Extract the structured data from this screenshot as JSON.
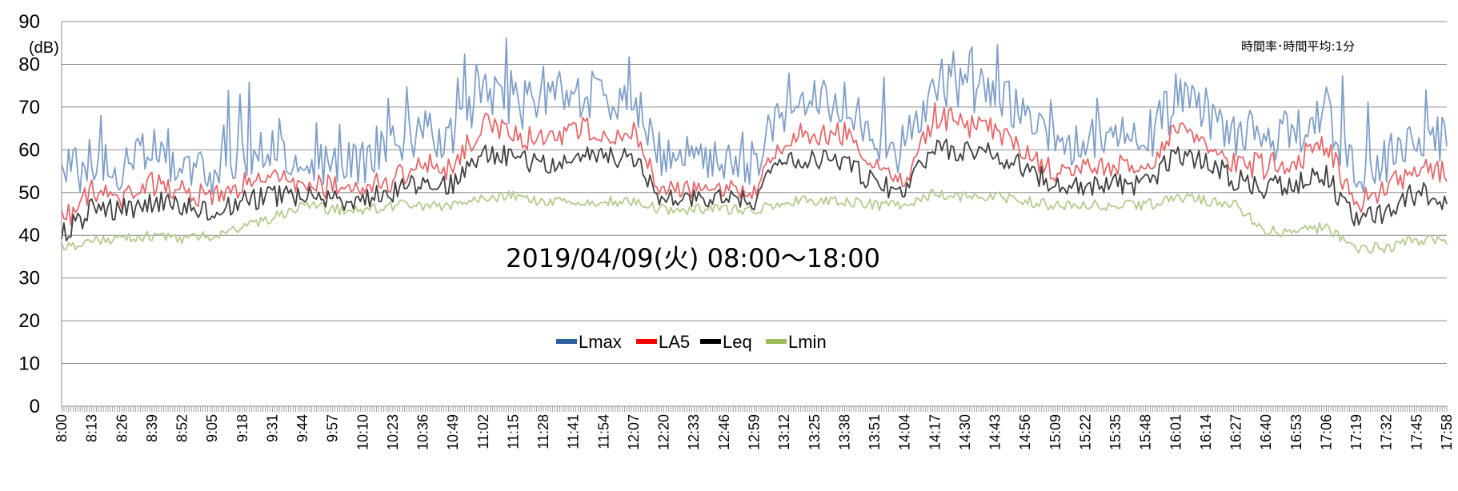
{
  "chart_data": {
    "type": "line",
    "title": "2019/04/09(火) 08:00～18:00",
    "annotation": "時間率･時間平均:1分",
    "ylabel": "(dB)",
    "ylim": [
      0,
      90
    ],
    "yticks": [
      0,
      10,
      20,
      30,
      40,
      50,
      60,
      70,
      80,
      90
    ],
    "x_start": "8:00",
    "x_end": "17:58",
    "x_interval_minutes": 1,
    "xtick_labels": [
      "8:00",
      "8:13",
      "8:26",
      "8:39",
      "8:52",
      "9:05",
      "9:18",
      "9:31",
      "9:44",
      "9:57",
      "10:10",
      "10:23",
      "10:36",
      "10:49",
      "11:02",
      "11:15",
      "11:28",
      "11:41",
      "11:54",
      "12:07",
      "12:20",
      "12:33",
      "12:46",
      "12:59",
      "13:12",
      "13:25",
      "13:38",
      "13:51",
      "14:04",
      "14:17",
      "14:30",
      "14:43",
      "14:56",
      "15:09",
      "15:22",
      "15:35",
      "15:48",
      "16:01",
      "16:14",
      "16:27",
      "16:40",
      "16:53",
      "17:06",
      "17:19",
      "17:32",
      "17:45",
      "17:58"
    ],
    "grid": true,
    "legend_position": "bottom-center",
    "series_base": [
      {
        "time": "8:00",
        "Lmax": 52,
        "LA5": 43,
        "Leq": 40,
        "Lmin": 37
      },
      {
        "time": "8:13",
        "Lmax": 58,
        "LA5": 50,
        "Leq": 46,
        "Lmin": 39
      },
      {
        "time": "8:26",
        "Lmax": 55,
        "LA5": 48,
        "Leq": 46,
        "Lmin": 39
      },
      {
        "time": "8:39",
        "Lmax": 59,
        "LA5": 52,
        "Leq": 48,
        "Lmin": 40
      },
      {
        "time": "8:52",
        "Lmax": 57,
        "LA5": 50,
        "Leq": 47,
        "Lmin": 39
      },
      {
        "time": "9:05",
        "Lmax": 55,
        "LA5": 49,
        "Leq": 46,
        "Lmin": 40
      },
      {
        "time": "9:18",
        "Lmax": 60,
        "LA5": 52,
        "Leq": 48,
        "Lmin": 42
      },
      {
        "time": "9:31",
        "Lmax": 59,
        "LA5": 53,
        "Leq": 49,
        "Lmin": 44
      },
      {
        "time": "9:44",
        "Lmax": 57,
        "LA5": 52,
        "Leq": 49,
        "Lmin": 47
      },
      {
        "time": "9:57",
        "Lmax": 56,
        "LA5": 51,
        "Leq": 48,
        "Lmin": 46
      },
      {
        "time": "10:10",
        "Lmax": 58,
        "LA5": 51,
        "Leq": 48,
        "Lmin": 46
      },
      {
        "time": "10:23",
        "Lmax": 62,
        "LA5": 53,
        "Leq": 50,
        "Lmin": 47
      },
      {
        "time": "10:36",
        "Lmax": 64,
        "LA5": 56,
        "Leq": 52,
        "Lmin": 47
      },
      {
        "time": "10:49",
        "Lmax": 63,
        "LA5": 56,
        "Leq": 52,
        "Lmin": 47
      },
      {
        "time": "11:02",
        "Lmax": 73,
        "LA5": 66,
        "Leq": 60,
        "Lmin": 49
      },
      {
        "time": "11:15",
        "Lmax": 71,
        "LA5": 63,
        "Leq": 58,
        "Lmin": 49
      },
      {
        "time": "11:28",
        "Lmax": 70,
        "LA5": 62,
        "Leq": 57,
        "Lmin": 48
      },
      {
        "time": "11:41",
        "Lmax": 73,
        "LA5": 65,
        "Leq": 58,
        "Lmin": 48
      },
      {
        "time": "11:54",
        "Lmax": 72,
        "LA5": 64,
        "Leq": 58,
        "Lmin": 48
      },
      {
        "time": "12:07",
        "Lmax": 71,
        "LA5": 64,
        "Leq": 58,
        "Lmin": 48
      },
      {
        "time": "12:20",
        "Lmax": 58,
        "LA5": 50,
        "Leq": 48,
        "Lmin": 46
      },
      {
        "time": "12:33",
        "Lmax": 57,
        "LA5": 50,
        "Leq": 48,
        "Lmin": 46
      },
      {
        "time": "12:46",
        "Lmax": 56,
        "LA5": 49,
        "Leq": 48,
        "Lmin": 46
      },
      {
        "time": "12:59",
        "Lmax": 57,
        "LA5": 49,
        "Leq": 48,
        "Lmin": 46
      },
      {
        "time": "13:12",
        "Lmax": 70,
        "LA5": 63,
        "Leq": 58,
        "Lmin": 48
      },
      {
        "time": "13:25",
        "Lmax": 72,
        "LA5": 64,
        "Leq": 58,
        "Lmin": 48
      },
      {
        "time": "13:38",
        "Lmax": 71,
        "LA5": 64,
        "Leq": 58,
        "Lmin": 48
      },
      {
        "time": "13:51",
        "Lmax": 63,
        "LA5": 55,
        "Leq": 52,
        "Lmin": 47
      },
      {
        "time": "14:04",
        "Lmax": 60,
        "LA5": 52,
        "Leq": 50,
        "Lmin": 47
      },
      {
        "time": "14:17",
        "Lmax": 76,
        "LA5": 68,
        "Leq": 61,
        "Lmin": 50
      },
      {
        "time": "14:30",
        "Lmax": 75,
        "LA5": 66,
        "Leq": 60,
        "Lmin": 49
      },
      {
        "time": "14:43",
        "Lmax": 73,
        "LA5": 65,
        "Leq": 59,
        "Lmin": 49
      },
      {
        "time": "14:56",
        "Lmax": 68,
        "LA5": 60,
        "Leq": 56,
        "Lmin": 48
      },
      {
        "time": "15:09",
        "Lmax": 60,
        "LA5": 54,
        "Leq": 51,
        "Lmin": 47
      },
      {
        "time": "15:22",
        "Lmax": 61,
        "LA5": 55,
        "Leq": 52,
        "Lmin": 47
      },
      {
        "time": "15:35",
        "Lmax": 62,
        "LA5": 56,
        "Leq": 52,
        "Lmin": 47
      },
      {
        "time": "15:48",
        "Lmax": 61,
        "LA5": 55,
        "Leq": 52,
        "Lmin": 47
      },
      {
        "time": "16:01",
        "Lmax": 72,
        "LA5": 64,
        "Leq": 59,
        "Lmin": 49
      },
      {
        "time": "16:14",
        "Lmax": 68,
        "LA5": 61,
        "Leq": 57,
        "Lmin": 48
      },
      {
        "time": "16:27",
        "Lmax": 64,
        "LA5": 57,
        "Leq": 53,
        "Lmin": 47
      },
      {
        "time": "16:40",
        "Lmax": 63,
        "LA5": 56,
        "Leq": 51,
        "Lmin": 41
      },
      {
        "time": "16:53",
        "Lmax": 65,
        "LA5": 58,
        "Leq": 52,
        "Lmin": 41
      },
      {
        "time": "17:06",
        "Lmax": 68,
        "LA5": 61,
        "Leq": 54,
        "Lmin": 42
      },
      {
        "time": "17:19",
        "Lmax": 53,
        "LA5": 47,
        "Leq": 43,
        "Lmin": 37
      },
      {
        "time": "17:32",
        "Lmax": 58,
        "LA5": 51,
        "Leq": 46,
        "Lmin": 37
      },
      {
        "time": "17:45",
        "Lmax": 64,
        "LA5": 56,
        "Leq": 50,
        "Lmin": 39
      },
      {
        "time": "17:58",
        "Lmax": 62,
        "LA5": 54,
        "Leq": 48,
        "Lmin": 39
      }
    ],
    "peaks": [
      {
        "time": "8:17",
        "Lmax": 68
      },
      {
        "time": "9:17",
        "Lmax": 73
      },
      {
        "time": "10:21",
        "Lmax": 72
      },
      {
        "time": "12:03",
        "Lmax": 75
      },
      {
        "time": "14:25",
        "Lmax": 83
      },
      {
        "time": "14:33",
        "Lmax": 84
      },
      {
        "time": "15:27",
        "Lmax": 72
      },
      {
        "time": "17:49",
        "Lmax": 74
      }
    ],
    "series": [
      {
        "name": "Lmax",
        "color": "#7f9fc9",
        "legend_color": "#2e5f9e"
      },
      {
        "name": "LA5",
        "color": "#e8676a",
        "legend_color": "#ff0000"
      },
      {
        "name": "Leq",
        "color": "#404040",
        "legend_color": "#000000"
      },
      {
        "name": "Lmin",
        "color": "#b5cc8e",
        "legend_color": "#9bbb59"
      }
    ]
  }
}
